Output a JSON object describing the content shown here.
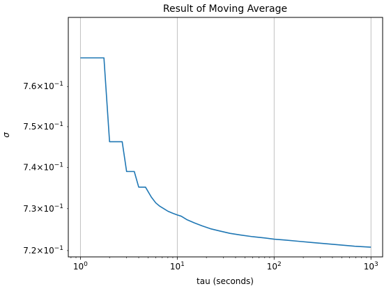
{
  "chart_data": {
    "type": "line",
    "title": "Result of Moving Average",
    "xlabel": "tau (seconds)",
    "ylabel": "σ",
    "xscale": "log",
    "yscale": "log",
    "xlim": [
      0.75,
      1320
    ],
    "ylim": [
      0.7185,
      0.7775
    ],
    "grid": "vertical major lines",
    "x_ticks": [
      {
        "value": 1,
        "base": "10",
        "exp": "0"
      },
      {
        "value": 10,
        "base": "10",
        "exp": "1"
      },
      {
        "value": 100,
        "base": "10",
        "exp": "2"
      },
      {
        "value": 1000,
        "base": "10",
        "exp": "3"
      }
    ],
    "y_ticks": [
      {
        "value": 0.72,
        "mantissa": "7.2",
        "base": "10",
        "exp": "−1"
      },
      {
        "value": 0.73,
        "mantissa": "7.3",
        "base": "10",
        "exp": "−1"
      },
      {
        "value": 0.74,
        "mantissa": "7.4",
        "base": "10",
        "exp": "−1"
      },
      {
        "value": 0.75,
        "mantissa": "7.5",
        "base": "10",
        "exp": "−1"
      },
      {
        "value": 0.76,
        "mantissa": "7.6",
        "base": "10",
        "exp": "−1"
      }
    ],
    "series": [
      {
        "color": "#1f77b4",
        "x": [
          1,
          1.75,
          2.0,
          2.2,
          2.7,
          3.0,
          3.2,
          3.6,
          4.0,
          4.3,
          4.7,
          5.4,
          6.0,
          6.6,
          7.4,
          8.0,
          9.0,
          10.0,
          11.0,
          12.5,
          15,
          18,
          22,
          27,
          35,
          45,
          60,
          80,
          100,
          130,
          180,
          250,
          350,
          500,
          700,
          1000
        ],
        "y": [
          0.7672,
          0.7672,
          0.7463,
          0.7463,
          0.7463,
          0.739,
          0.739,
          0.739,
          0.7352,
          0.7352,
          0.7352,
          0.7328,
          0.7314,
          0.7306,
          0.7299,
          0.7294,
          0.7289,
          0.7285,
          0.7282,
          0.7274,
          0.7266,
          0.7259,
          0.7252,
          0.7247,
          0.7241,
          0.7237,
          0.7233,
          0.723,
          0.7227,
          0.7225,
          0.7222,
          0.7219,
          0.7216,
          0.7213,
          0.721,
          0.7208
        ]
      }
    ]
  }
}
